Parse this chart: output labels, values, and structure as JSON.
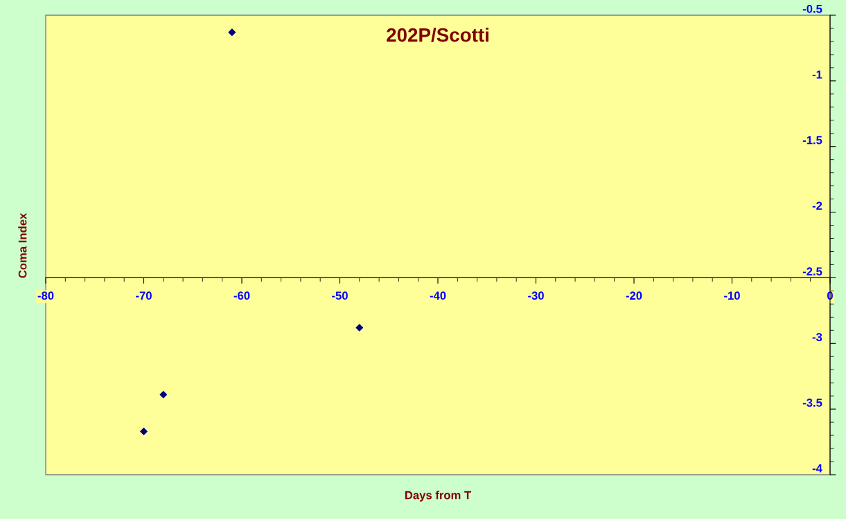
{
  "chart_data": {
    "type": "scatter",
    "title": "202P/Scotti",
    "xlabel": "Days from T",
    "ylabel": "Coma Index",
    "x": [
      -61,
      -48,
      -68,
      -70
    ],
    "series": [
      {
        "color": "#000080",
        "values": [
          -0.63,
          -2.88,
          -3.39,
          -3.67
        ]
      }
    ],
    "marker": "diamond",
    "xlim": [
      -80,
      0
    ],
    "xticks": [
      -80,
      -70,
      -60,
      -50,
      -40,
      -30,
      -20,
      -10,
      0
    ],
    "ylim": [
      -4,
      -0.5
    ],
    "yticks": [
      -4,
      -3.5,
      -3,
      -2.5,
      -2,
      -1.5,
      -1,
      -0.5
    ],
    "grid": false,
    "legend": false
  }
}
